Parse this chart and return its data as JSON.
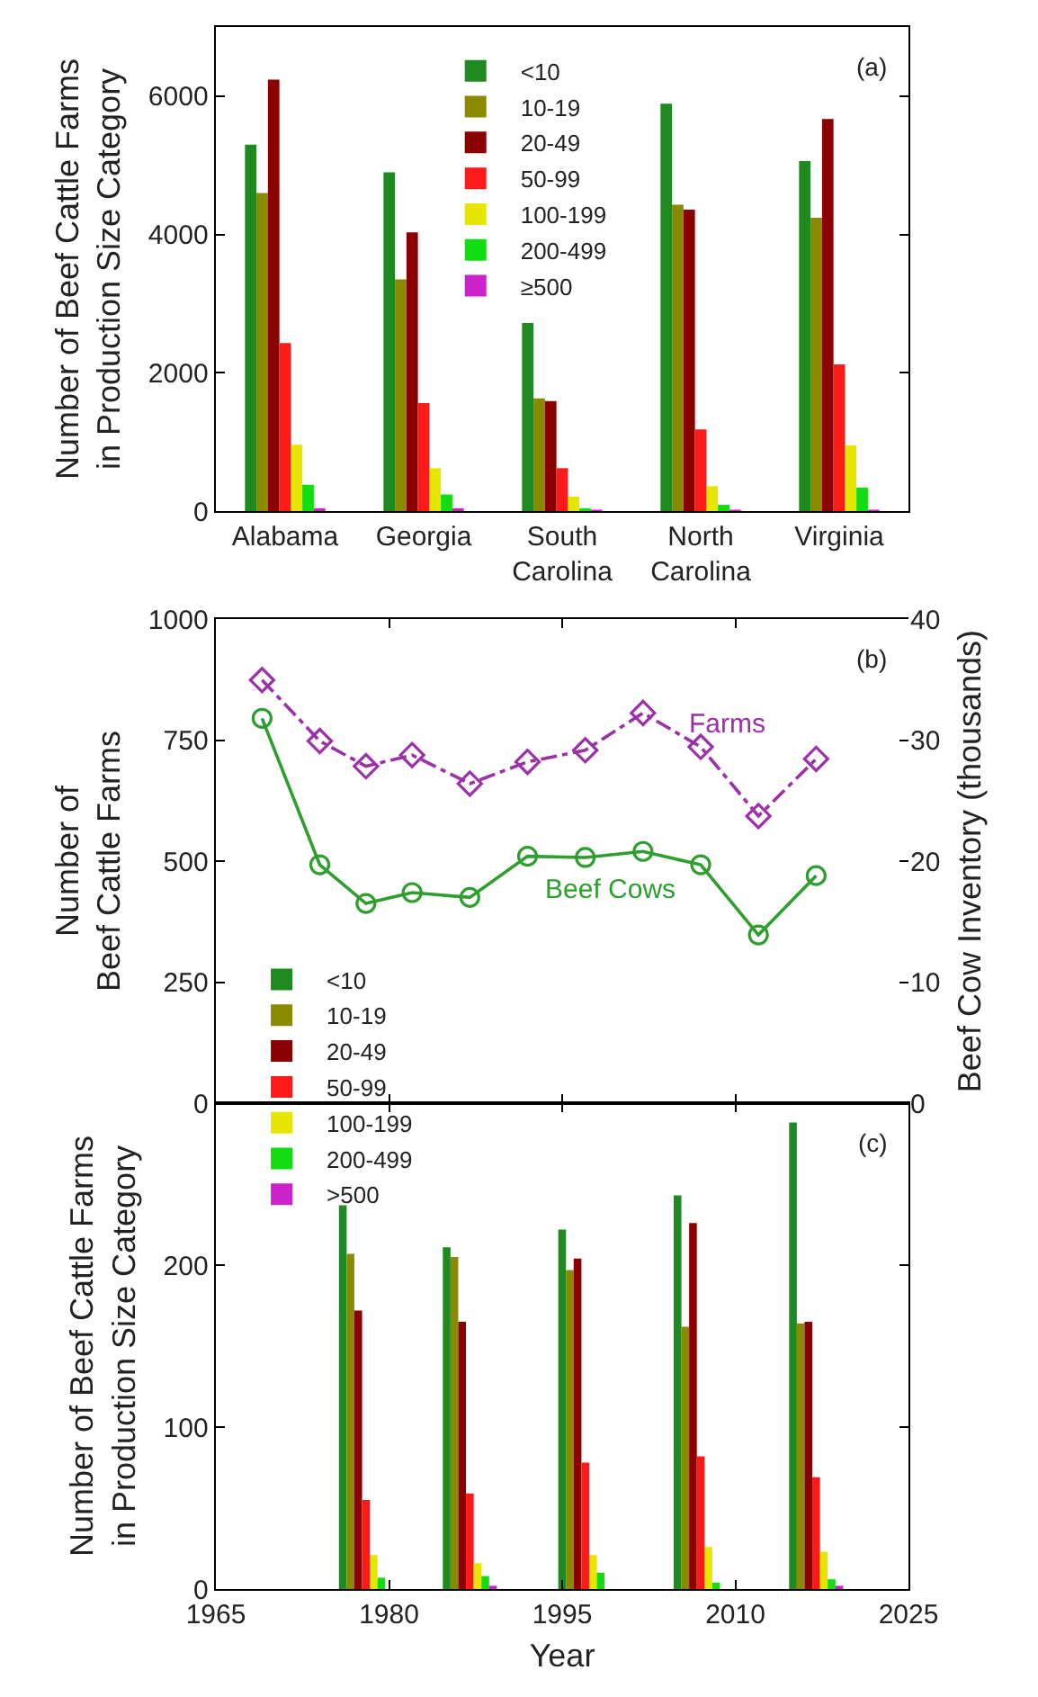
{
  "chart_data": [
    {
      "type": "bar",
      "ylabel": "Number of Beef Cattle Farms\nin Production Size Category",
      "categories": [
        "Alabama",
        "Georgia",
        "South Carolina",
        "North Carolina",
        "Virginia"
      ],
      "ylim": [
        0,
        7000
      ],
      "yticks": [
        0,
        2000,
        4000,
        6000
      ],
      "grid": false,
      "legend": "top",
      "annotations": [
        "(a)"
      ],
      "series": [
        {
          "name": "<10",
          "color": "#1f8a1f",
          "values": [
            5300,
            4900,
            2720,
            5890,
            5060
          ]
        },
        {
          "name": "10-19",
          "color": "#8a8a00",
          "values": [
            4600,
            3350,
            1630,
            4430,
            4240
          ]
        },
        {
          "name": "20-49",
          "color": "#8b0000",
          "values": [
            6240,
            4030,
            1590,
            4360,
            5670
          ]
        },
        {
          "name": "50-99",
          "color": "#ff1a1a",
          "values": [
            2430,
            1560,
            620,
            1180,
            2120
          ]
        },
        {
          "name": "100-199",
          "color": "#e6e600",
          "values": [
            960,
            620,
            210,
            360,
            950
          ]
        },
        {
          "name": "200-499",
          "color": "#11dd11",
          "values": [
            380,
            240,
            40,
            90,
            340
          ]
        },
        {
          "name": "≥500",
          "color": "#cc22cc",
          "values": [
            40,
            40,
            20,
            20,
            20
          ]
        }
      ]
    },
    {
      "type": "line",
      "ylabel": "Number of\nBeef Cattle Farms",
      "y2label": "Beef Cow Inventory (thousands)",
      "x": [
        1969,
        1974,
        1978,
        1982,
        1987,
        1992,
        1997,
        2002,
        2007,
        2012,
        2017
      ],
      "xlim": [
        1965,
        2025
      ],
      "xticks": [
        1965,
        1980,
        1995,
        2010,
        2025
      ],
      "ylim": [
        0,
        1000
      ],
      "yticks": [
        0,
        250,
        500,
        750,
        1000
      ],
      "y2lim": [
        0,
        40
      ],
      "y2ticks": [
        0,
        10,
        20,
        30,
        40
      ],
      "tick_labels": "y",
      "grid": false,
      "legend": false,
      "annotations": [
        "(b)"
      ],
      "series": [
        {
          "name": "Farms",
          "color": "#9b30a8",
          "marker": "diamond",
          "line_style": "dashed",
          "values": [
            874,
            748,
            696,
            719,
            660,
            705,
            729,
            806,
            736,
            593,
            711
          ]
        },
        {
          "name": "Beef Cows",
          "color": "#2e9e2e",
          "marker": "circle",
          "line_style": "solid",
          "axis": "y2",
          "values": [
            31.8,
            19.7,
            16.5,
            17.4,
            17.0,
            20.4,
            20.3,
            20.8,
            19.7,
            13.9,
            18.8
          ]
        }
      ]
    },
    {
      "type": "bar",
      "xlabel": "Year",
      "ylabel": "Number of Beef Cattle Farms\nin Production Size Category",
      "x": [
        1978,
        1987,
        1997,
        2007,
        2017
      ],
      "xlim": [
        1965,
        2025
      ],
      "xticks": [
        1965,
        1980,
        1995,
        2010,
        2025
      ],
      "ylim": [
        0,
        300
      ],
      "yticks": [
        0,
        100,
        200
      ],
      "grid": false,
      "legend": "top left",
      "annotations": [
        "(c)"
      ],
      "series": [
        {
          "name": "<10",
          "color": "#1f8a1f",
          "values": [
            237,
            211,
            222,
            243,
            288
          ]
        },
        {
          "name": "10-19",
          "color": "#8a8a00",
          "values": [
            207,
            205,
            197,
            162,
            164
          ]
        },
        {
          "name": "20-49",
          "color": "#8b0000",
          "values": [
            172,
            165,
            204,
            226,
            165
          ]
        },
        {
          "name": "50-99",
          "color": "#ff1a1a",
          "values": [
            55,
            59,
            78,
            82,
            69
          ]
        },
        {
          "name": "100-199",
          "color": "#e6e600",
          "values": [
            21,
            16,
            21,
            26,
            23
          ]
        },
        {
          "name": "200-499",
          "color": "#11dd11",
          "values": [
            7,
            8,
            10,
            4,
            6
          ]
        },
        {
          "name": ">500",
          "color": "#cc22cc",
          "values": [
            0,
            2,
            0,
            0,
            2
          ]
        }
      ]
    }
  ]
}
